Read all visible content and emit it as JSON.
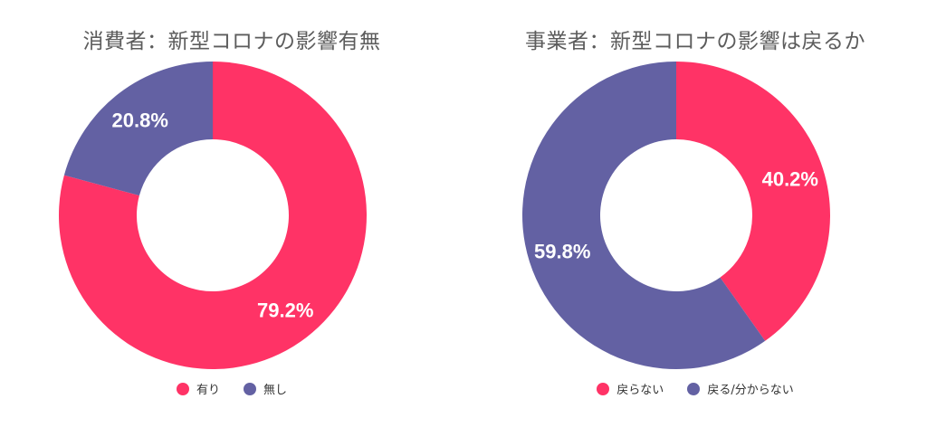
{
  "chart_data": [
    {
      "type": "pie",
      "title": "消費者：新型コロナの影響有無",
      "slices": [
        {
          "label": "有り",
          "value": 79.2,
          "value_label": "79.2%",
          "color": "#ff3366"
        },
        {
          "label": "無し",
          "value": 20.8,
          "value_label": "20.8%",
          "color": "#6361a3"
        }
      ],
      "legend_position": "bottom"
    },
    {
      "type": "pie",
      "title": "事業者：新型コロナの影響は戻るか",
      "slices": [
        {
          "label": "戻らない",
          "value": 40.2,
          "value_label": "40.2%",
          "color": "#ff3366"
        },
        {
          "label": "戻る/分からない",
          "value": 59.8,
          "value_label": "59.8%",
          "color": "#6361a3"
        }
      ],
      "legend_position": "bottom"
    }
  ]
}
